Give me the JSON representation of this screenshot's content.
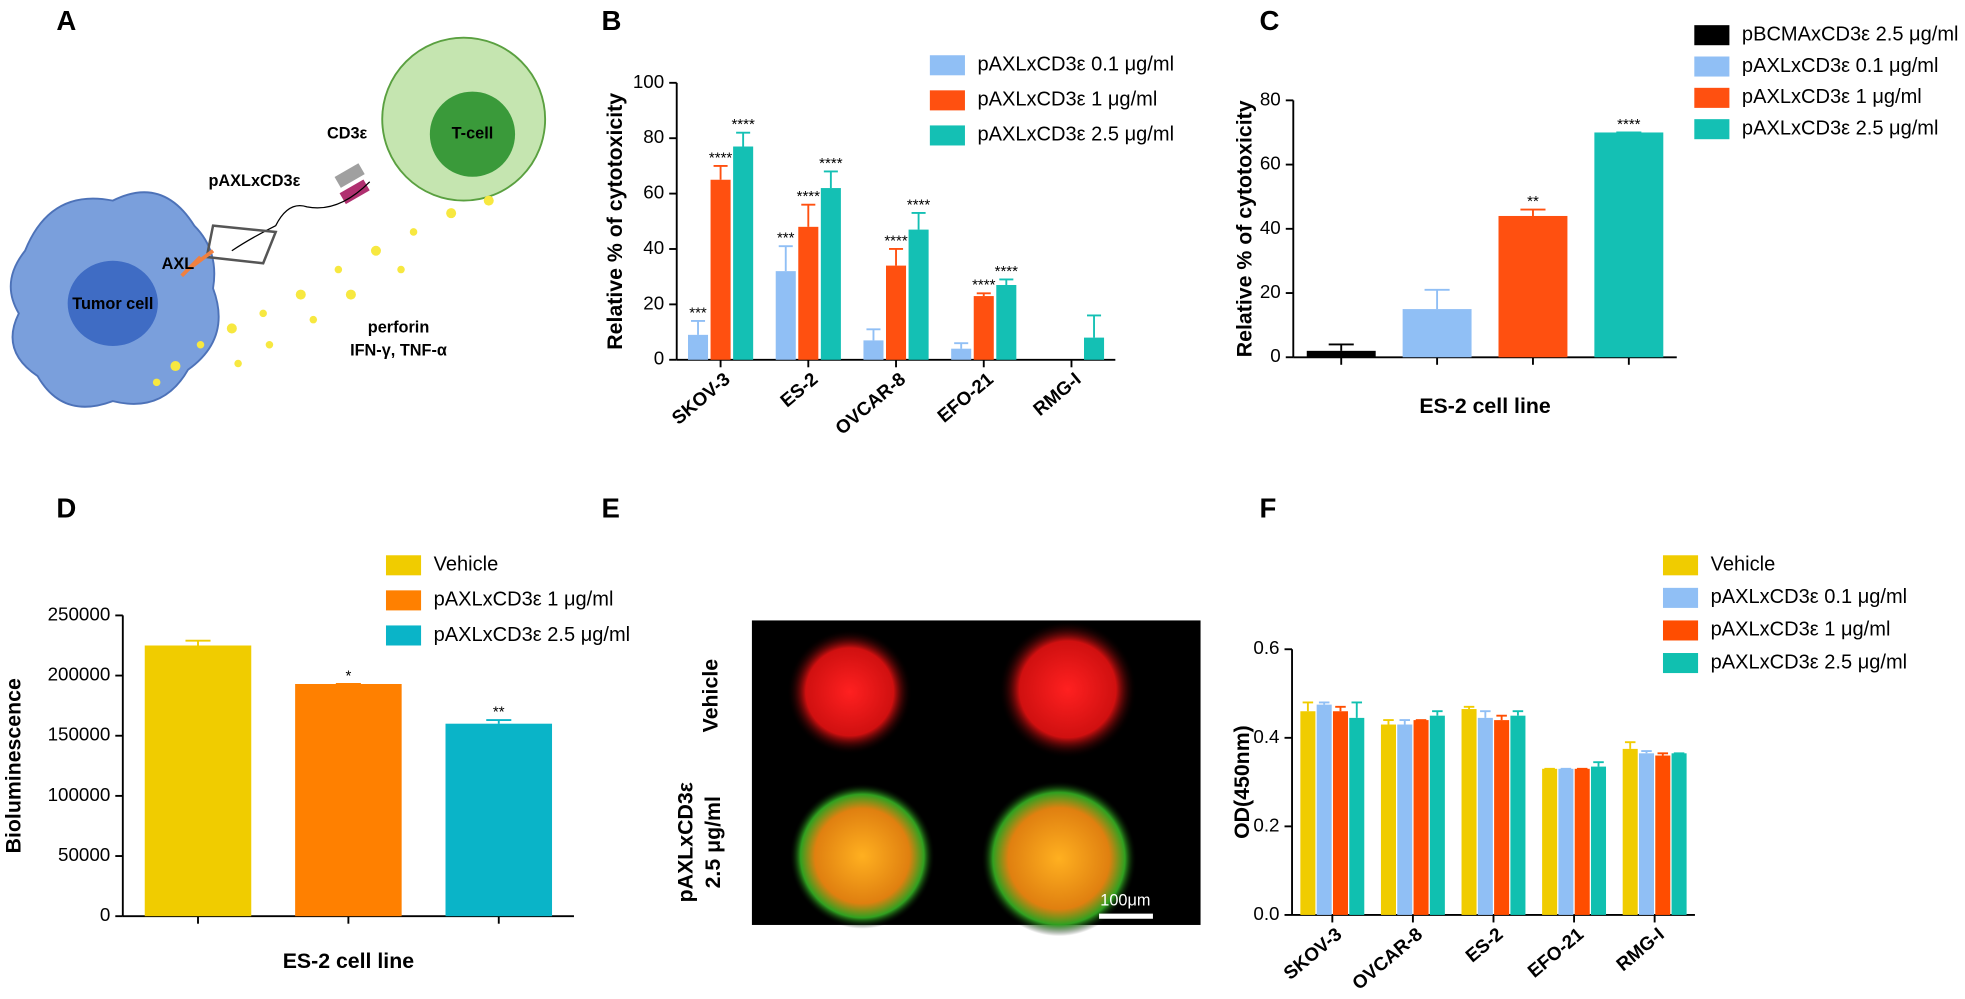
{
  "panel_labels": [
    "A",
    "B",
    "C",
    "D",
    "E",
    "F"
  ],
  "diagram": {
    "tumor_cell": "Tumor cell",
    "t_cell": "T-cell",
    "cd3": "CD3ε",
    "antibody": "pAXLxCD3ε",
    "axl": "AXL",
    "perforin": "perforin",
    "cytokines": "IFN-γ, TNF-α"
  },
  "image": {
    "row_labels": [
      [
        "Vehicle"
      ],
      [
        "pAXLxCD3ε",
        "2.5 μg/ml"
      ]
    ],
    "scale_bar": "100μm"
  },
  "chart_data": [
    {
      "type": "bar",
      "ylabel": "Relative % of cytotoxicity",
      "categories": [
        "SKOV-3",
        "ES-2",
        "OVCAR-8",
        "EFO-21",
        "RMG-I"
      ],
      "series": [
        {
          "name": "pAXLxCD3ε 0.1 μg/ml",
          "color": "#90bff5",
          "values": [
            9,
            32,
            7,
            4,
            null
          ],
          "errors": [
            5,
            9,
            4,
            2,
            null
          ],
          "significance": [
            "***",
            "***",
            null,
            null,
            null
          ]
        },
        {
          "name": "pAXLxCD3ε 1 μg/ml",
          "color": "#ff5010",
          "values": [
            65,
            48,
            34,
            23,
            null
          ],
          "errors": [
            5,
            8,
            6,
            1,
            null
          ],
          "significance": [
            "****",
            "****",
            "****",
            "****",
            null
          ]
        },
        {
          "name": "pAXLxCD3ε 2.5 μg/ml",
          "color": "#14c0b4",
          "values": [
            77,
            62,
            47,
            27,
            8
          ],
          "errors": [
            5,
            6,
            6,
            2,
            8
          ],
          "significance": [
            "****",
            "****",
            "****",
            "****",
            null
          ]
        }
      ],
      "ylim": [
        0,
        100
      ],
      "yticks": [
        0,
        20,
        40,
        60,
        80,
        100
      ]
    },
    {
      "type": "bar",
      "ylabel": "Relative % of cytotoxicity",
      "xlabel": "ES-2 cell line",
      "legend": [
        "pBCMAxCD3ε 2.5 μg/ml",
        "pAXLxCD3ε 0.1 μg/ml",
        "pAXLxCD3ε 1 μg/ml",
        "pAXLxCD3ε 2.5 μg/ml"
      ],
      "colors": [
        "#000000",
        "#90bff5",
        "#ff5010",
        "#14c0b4"
      ],
      "values": [
        2,
        15,
        44,
        70
      ],
      "errors": [
        2,
        6,
        2,
        0
      ],
      "significance": [
        null,
        null,
        "**",
        "****"
      ],
      "ylim": [
        0,
        80
      ],
      "yticks": [
        0,
        20,
        40,
        60,
        80
      ]
    },
    {
      "type": "bar",
      "ylabel": "Bioluminescence",
      "xlabel": "ES-2 cell line",
      "legend": [
        "Vehicle",
        "pAXLxCD3ε 1 μg/ml",
        "pAXLxCD3ε 2.5 μg/ml"
      ],
      "colors": [
        "#f0cc00",
        "#ff8000",
        "#0ab4c8"
      ],
      "values": [
        225000,
        193000,
        160000
      ],
      "errors": [
        4000,
        0,
        3000
      ],
      "significance": [
        null,
        "*",
        "**"
      ],
      "ylim": [
        0,
        250000
      ],
      "yticks": [
        0,
        50000,
        100000,
        150000,
        200000,
        250000
      ]
    },
    {
      "type": "bar",
      "ylabel": "OD(450nm)",
      "categories": [
        "SKOV-3",
        "OVCAR-8",
        "ES-2",
        "EFO-21",
        "RMG-I"
      ],
      "series": [
        {
          "name": "Vehicle",
          "color": "#f0cc00",
          "values": [
            0.46,
            0.43,
            0.465,
            0.33,
            0.375
          ],
          "errors": [
            0.02,
            0.01,
            0.005,
            0,
            0.015
          ]
        },
        {
          "name": "pAXLxCD3ε 0.1 μg/ml",
          "color": "#90bff5",
          "values": [
            0.475,
            0.43,
            0.445,
            0.33,
            0.365
          ],
          "errors": [
            0.005,
            0.01,
            0.015,
            0,
            0.005
          ]
        },
        {
          "name": "pAXLxCD3ε 1 μg/ml",
          "color": "#ff4d00",
          "values": [
            0.46,
            0.44,
            0.44,
            0.33,
            0.36
          ],
          "errors": [
            0.01,
            0,
            0.01,
            0,
            0.005
          ]
        },
        {
          "name": "pAXLxCD3ε 2.5 μg/ml",
          "color": "#10c0b0",
          "values": [
            0.445,
            0.45,
            0.45,
            0.335,
            0.365
          ],
          "errors": [
            0.035,
            0.01,
            0.01,
            0.01,
            0
          ]
        }
      ],
      "ylim": [
        0,
        0.6
      ],
      "yticks": [
        {
          "value": 0,
          "label": "0.0"
        },
        0.2,
        0.4,
        0.6
      ]
    }
  ]
}
